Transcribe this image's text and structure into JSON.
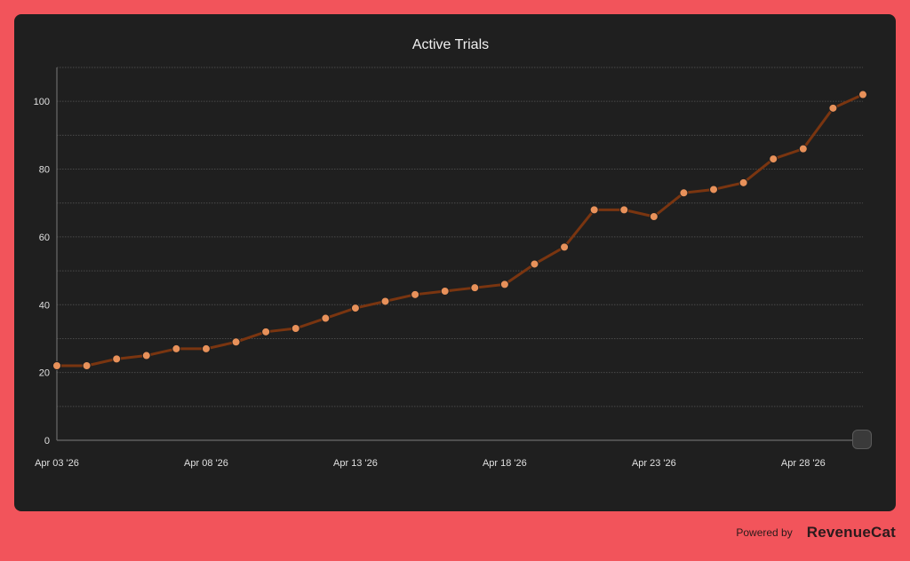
{
  "footer": {
    "powered_by": "Powered by",
    "brand": "RevenueCat"
  },
  "colors": {
    "background": "#f2545b",
    "card": "#1f1f1f",
    "line": "#7a3510",
    "point": "#e8915a"
  },
  "chart_data": {
    "type": "line",
    "title": "Active Trials",
    "xlabel": "",
    "ylabel": "",
    "ylim": [
      0,
      110
    ],
    "yticks": [
      0,
      20,
      40,
      60,
      80,
      100
    ],
    "grid": true,
    "x_tick_labels": [
      {
        "index": 0,
        "label": "Apr 03 '26"
      },
      {
        "index": 5,
        "label": "Apr 08 '26"
      },
      {
        "index": 10,
        "label": "Apr 13 '26"
      },
      {
        "index": 15,
        "label": "Apr 18 '26"
      },
      {
        "index": 20,
        "label": "Apr 23 '26"
      },
      {
        "index": 25,
        "label": "Apr 28 '26"
      }
    ],
    "x": [
      "Apr 03 '26",
      "Apr 04 '26",
      "Apr 05 '26",
      "Apr 06 '26",
      "Apr 07 '26",
      "Apr 08 '26",
      "Apr 09 '26",
      "Apr 10 '26",
      "Apr 11 '26",
      "Apr 12 '26",
      "Apr 13 '26",
      "Apr 14 '26",
      "Apr 15 '26",
      "Apr 16 '26",
      "Apr 17 '26",
      "Apr 18 '26",
      "Apr 19 '26",
      "Apr 20 '26",
      "Apr 21 '26",
      "Apr 22 '26",
      "Apr 23 '26",
      "Apr 24 '26",
      "Apr 25 '26",
      "Apr 26 '26",
      "Apr 27 '26",
      "Apr 28 '26",
      "Apr 29 '26",
      "Apr 30 '26"
    ],
    "values": [
      22,
      22,
      24,
      25,
      27,
      27,
      29,
      32,
      33,
      36,
      39,
      41,
      43,
      44,
      45,
      46,
      52,
      57,
      68,
      68,
      66,
      73,
      74,
      76,
      83,
      86,
      98,
      102
    ]
  }
}
